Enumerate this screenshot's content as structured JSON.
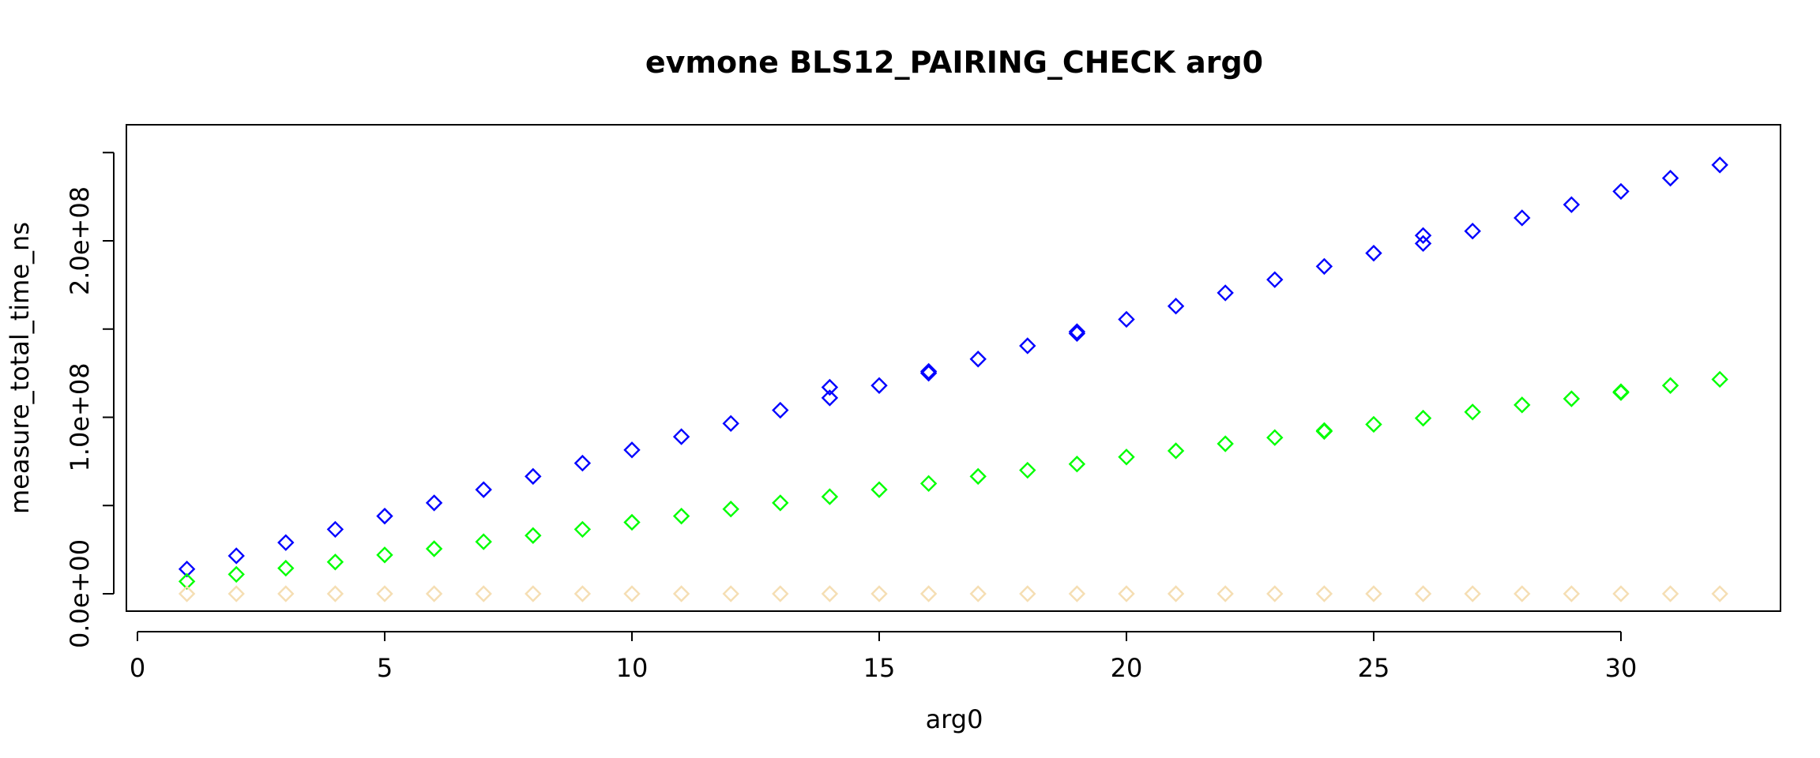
{
  "chart_data": {
    "type": "scatter",
    "title": "evmone BLS12_PAIRING_CHECK arg0",
    "xlabel": "arg0",
    "ylabel": "measure_total_time_ns",
    "xlim": [
      0,
      33
    ],
    "ylim": [
      0,
      250000000
    ],
    "x_ticks": [
      0,
      5,
      10,
      15,
      20,
      25,
      30
    ],
    "x_tick_labels": [
      "0",
      "5",
      "10",
      "15",
      "20",
      "25",
      "30"
    ],
    "y_ticks": [
      0,
      50000000,
      100000000,
      150000000,
      200000000,
      250000000
    ],
    "y_tick_labels": [
      "0.0e+00",
      "",
      "1.0e+08",
      "",
      "2.0e+08",
      ""
    ],
    "grid": false,
    "marker": "diamond",
    "series": [
      {
        "color": "#0000ff",
        "points": [
          [
            1,
            14000000
          ],
          [
            2,
            21500000
          ],
          [
            3,
            29000000
          ],
          [
            4,
            36500000
          ],
          [
            5,
            44000000
          ],
          [
            6,
            51500000
          ],
          [
            7,
            59000000
          ],
          [
            8,
            66500000
          ],
          [
            9,
            74000000
          ],
          [
            10,
            81500000
          ],
          [
            11,
            89000000
          ],
          [
            12,
            96500000
          ],
          [
            13,
            104000000
          ],
          [
            14,
            111000000
          ],
          [
            14,
            117000000
          ],
          [
            15,
            118000000
          ],
          [
            16,
            125000000
          ],
          [
            16,
            126000000
          ],
          [
            17,
            133000000
          ],
          [
            18,
            140500000
          ],
          [
            19,
            147500000
          ],
          [
            19,
            148500000
          ],
          [
            20,
            155500000
          ],
          [
            21,
            163000000
          ],
          [
            22,
            170500000
          ],
          [
            23,
            178000000
          ],
          [
            24,
            185500000
          ],
          [
            25,
            193000000
          ],
          [
            26,
            198500000
          ],
          [
            26,
            203000000
          ],
          [
            27,
            205500000
          ],
          [
            28,
            213000000
          ],
          [
            29,
            220500000
          ],
          [
            30,
            228000000
          ],
          [
            31,
            235500000
          ],
          [
            32,
            243000000
          ]
        ]
      },
      {
        "color": "#00ff00",
        "points": [
          [
            1,
            7000000
          ],
          [
            2,
            11000000
          ],
          [
            3,
            14500000
          ],
          [
            4,
            18000000
          ],
          [
            5,
            22000000
          ],
          [
            6,
            25500000
          ],
          [
            7,
            29500000
          ],
          [
            8,
            33000000
          ],
          [
            9,
            36500000
          ],
          [
            10,
            40500000
          ],
          [
            11,
            44000000
          ],
          [
            12,
            48000000
          ],
          [
            13,
            51500000
          ],
          [
            14,
            55000000
          ],
          [
            15,
            59000000
          ],
          [
            16,
            62500000
          ],
          [
            17,
            66500000
          ],
          [
            18,
            70000000
          ],
          [
            19,
            73500000
          ],
          [
            20,
            77500000
          ],
          [
            21,
            81000000
          ],
          [
            22,
            85000000
          ],
          [
            23,
            88500000
          ],
          [
            24,
            92000000
          ],
          [
            24,
            92500000
          ],
          [
            25,
            96000000
          ],
          [
            26,
            99500000
          ],
          [
            27,
            103000000
          ],
          [
            28,
            107000000
          ],
          [
            29,
            110500000
          ],
          [
            30,
            114000000
          ],
          [
            30,
            114500000
          ],
          [
            31,
            118000000
          ],
          [
            32,
            121500000
          ]
        ]
      },
      {
        "color": "#f5deb3",
        "points": [
          [
            1,
            0
          ],
          [
            2,
            0
          ],
          [
            3,
            0
          ],
          [
            4,
            0
          ],
          [
            5,
            0
          ],
          [
            6,
            0
          ],
          [
            7,
            0
          ],
          [
            8,
            0
          ],
          [
            9,
            0
          ],
          [
            10,
            0
          ],
          [
            11,
            0
          ],
          [
            12,
            0
          ],
          [
            13,
            0
          ],
          [
            14,
            0
          ],
          [
            15,
            0
          ],
          [
            16,
            0
          ],
          [
            17,
            0
          ],
          [
            18,
            0
          ],
          [
            19,
            0
          ],
          [
            20,
            0
          ],
          [
            21,
            0
          ],
          [
            22,
            0
          ],
          [
            23,
            0
          ],
          [
            24,
            0
          ],
          [
            25,
            0
          ],
          [
            26,
            0
          ],
          [
            27,
            0
          ],
          [
            28,
            0
          ],
          [
            29,
            0
          ],
          [
            30,
            0
          ],
          [
            31,
            0
          ],
          [
            32,
            0
          ]
        ]
      }
    ]
  }
}
